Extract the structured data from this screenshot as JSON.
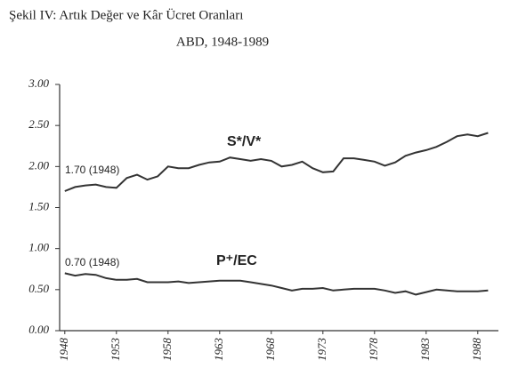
{
  "chart_data": {
    "type": "line",
    "title": "Şekil IV: Artık Değer ve Kâr Ücret Oranları",
    "subtitle": "ABD, 1948-1989",
    "x": [
      1948,
      1949,
      1950,
      1951,
      1952,
      1953,
      1954,
      1955,
      1956,
      1957,
      1958,
      1959,
      1960,
      1961,
      1962,
      1963,
      1964,
      1965,
      1966,
      1967,
      1968,
      1969,
      1970,
      1971,
      1972,
      1973,
      1974,
      1975,
      1976,
      1977,
      1978,
      1979,
      1980,
      1981,
      1982,
      1983,
      1984,
      1985,
      1986,
      1987,
      1988,
      1989
    ],
    "series": [
      {
        "name": "S*/V*",
        "color": "#333333",
        "values": [
          1.7,
          1.75,
          1.77,
          1.78,
          1.75,
          1.74,
          1.86,
          1.9,
          1.84,
          1.88,
          2.0,
          1.98,
          1.98,
          2.02,
          2.05,
          2.06,
          2.11,
          2.09,
          2.07,
          2.09,
          2.07,
          2.0,
          2.02,
          2.06,
          1.98,
          1.93,
          1.94,
          2.1,
          2.1,
          2.08,
          2.06,
          2.01,
          2.05,
          2.13,
          2.17,
          2.2,
          2.24,
          2.3,
          2.37,
          2.39,
          2.37,
          2.41
        ]
      },
      {
        "name": "P⁺/EC",
        "color": "#333333",
        "values": [
          0.7,
          0.67,
          0.69,
          0.68,
          0.64,
          0.62,
          0.62,
          0.63,
          0.59,
          0.59,
          0.59,
          0.6,
          0.58,
          0.59,
          0.6,
          0.61,
          0.61,
          0.61,
          0.59,
          0.57,
          0.55,
          0.52,
          0.49,
          0.51,
          0.51,
          0.52,
          0.49,
          0.5,
          0.51,
          0.51,
          0.51,
          0.49,
          0.46,
          0.48,
          0.44,
          0.47,
          0.5,
          0.49,
          0.48,
          0.48,
          0.48,
          0.49
        ]
      }
    ],
    "annotations": [
      "1.70 (1948)",
      "0.70 (1948)"
    ],
    "xlim": [
      1947.5,
      1990
    ],
    "xticks": [
      1948,
      1953,
      1958,
      1963,
      1968,
      1973,
      1978,
      1983,
      1988
    ],
    "ylim": [
      0,
      3
    ],
    "yticks": [
      {
        "value": 0,
        "label": "0.00"
      },
      {
        "value": 0.5,
        "label": "0.50"
      },
      {
        "value": 1,
        "label": "1.00"
      },
      {
        "value": 1.5,
        "label": "1.50"
      },
      {
        "value": 2,
        "label": "2.00"
      },
      {
        "value": 2.5,
        "label": "2.50"
      },
      {
        "value": 3,
        "label": "3.00"
      }
    ],
    "grid": false
  }
}
